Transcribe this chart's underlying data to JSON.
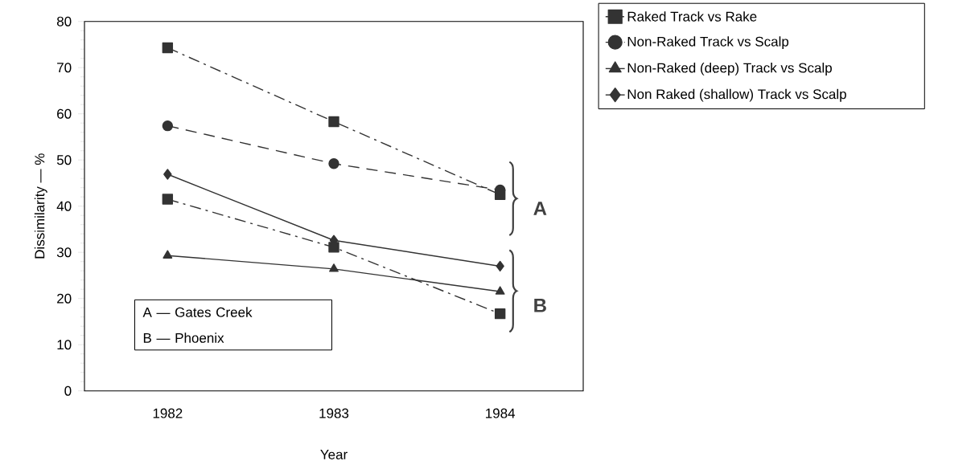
{
  "chart_data": {
    "type": "line",
    "xlabel": "Year",
    "ylabel": "Dissimilarity — %",
    "categories": [
      "1982",
      "1983",
      "1984"
    ],
    "ylim": [
      0,
      80
    ],
    "yticks": [
      0,
      10,
      20,
      30,
      40,
      50,
      60,
      70,
      80
    ],
    "legend": "right",
    "series": [
      {
        "name": "Raked Track vs Rake",
        "color": "#333333",
        "marker": "square",
        "line_style": "dashdot",
        "values": [
          74.3,
          58.3,
          42.5
        ]
      },
      {
        "name": "Non-Raked Track vs Scalp",
        "color": "#333333",
        "marker": "circle",
        "line_style": "dashed",
        "values": [
          57.4,
          49.2,
          43.5
        ]
      },
      {
        "name": "Non-Raked (deep) Track vs Scalp",
        "color": "#333333",
        "marker": "triangle",
        "line_style": "solid",
        "values": [
          29.3,
          26.4,
          21.5
        ]
      },
      {
        "name": "Non Raked (shallow) Track vs Scalp",
        "color": "#333333",
        "marker": "diamond",
        "line_style": "solid",
        "values": [
          46.9,
          32.6,
          27.0
        ]
      },
      {
        "color": "#333333",
        "marker": "square",
        "line_style": "dashdot",
        "values": [
          41.5,
          31.1,
          16.7
        ]
      }
    ],
    "annotations": [
      "A",
      "B",
      "A — Gates Creek",
      "B — Phoenix"
    ]
  }
}
